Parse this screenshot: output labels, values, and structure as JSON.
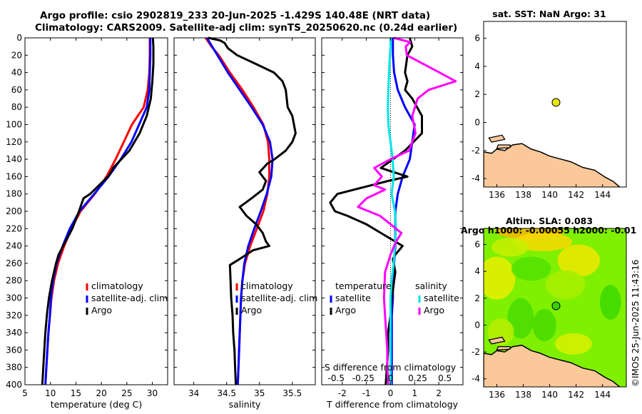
{
  "header": {
    "title_line1": "Argo profile: csio 2902819_233 20-Jun-2025 -1.429S 140.48E (NRT data)",
    "title_line2": "Climatology: CARS2009. Satellite-adj clim: synTS_20250620.nc (0.24d earlier)"
  },
  "stamp": "©IMOS 25-Jun-2025 11:43:16",
  "colors": {
    "climatology": "#ff0000",
    "satellite": "#0000ff",
    "argo": "#000000",
    "sat_diff_salinity": "#00e5e5",
    "argo_diff_salinity": "#ff00ff",
    "land": "#fbc89a",
    "sla_base": "#7ff000"
  },
  "chart_data": [
    {
      "id": "temperature",
      "type": "line",
      "xlabel": "temperature (deg C)",
      "ylabel": "",
      "xlim": [
        5,
        33
      ],
      "ylim": [
        400,
        0
      ],
      "xticks": [
        "5",
        "10",
        "15",
        "20",
        "25",
        "30"
      ],
      "yticks": [
        "0",
        "20",
        "40",
        "60",
        "80",
        "100",
        "120",
        "140",
        "160",
        "180",
        "200",
        "220",
        "240",
        "260",
        "280",
        "300",
        "320",
        "340",
        "360",
        "380",
        "400"
      ],
      "legend": [
        "climatology",
        "satellite-adj. clim",
        "Argo"
      ],
      "series": [
        {
          "name": "climatology",
          "color": "#ff0000",
          "depth": [
            0,
            20,
            40,
            60,
            80,
            100,
            120,
            140,
            160,
            180,
            200,
            220,
            240,
            260,
            280,
            300,
            320,
            340,
            360,
            380,
            400
          ],
          "values": [
            29.5,
            29.5,
            29.4,
            29.1,
            28.3,
            26.0,
            24.4,
            22.8,
            21.0,
            18.7,
            15.9,
            14.1,
            12.7,
            11.5,
            10.7,
            10.2,
            9.9,
            9.6,
            9.4,
            9.2,
            9.0
          ]
        },
        {
          "name": "satellite",
          "color": "#0000ff",
          "depth": [
            0,
            20,
            40,
            60,
            80,
            100,
            120,
            140,
            160,
            180,
            200,
            220,
            240,
            260,
            280,
            300,
            320,
            340,
            360,
            380,
            400
          ],
          "values": [
            29.6,
            29.6,
            29.5,
            29.4,
            28.9,
            27.4,
            25.9,
            23.8,
            21.4,
            18.6,
            15.7,
            13.8,
            12.4,
            11.2,
            10.5,
            10.1,
            9.9,
            9.6,
            9.4,
            9.2,
            9.0
          ]
        },
        {
          "name": "Argo",
          "color": "#000000",
          "depth": [
            0,
            10,
            30,
            50,
            70,
            90,
            110,
            130,
            150,
            155,
            160,
            165,
            180,
            185,
            200,
            220,
            240,
            250,
            260,
            280,
            300,
            320,
            340,
            360,
            380,
            400
          ],
          "values": [
            30.1,
            30.2,
            30.2,
            30.0,
            29.7,
            28.9,
            27.5,
            25.5,
            22.3,
            21.9,
            21.3,
            20.4,
            17.8,
            16.5,
            15.6,
            14.3,
            12.5,
            11.6,
            11.1,
            10.3,
            9.7,
            9.3,
            9.0,
            8.8,
            8.6,
            8.4
          ]
        }
      ]
    },
    {
      "id": "salinity",
      "type": "line",
      "xlabel": "salinity",
      "ylabel": "",
      "xlim": [
        33.7,
        35.85
      ],
      "ylim": [
        400,
        0
      ],
      "xticks": [
        "34",
        "34.5",
        "35",
        "35.5"
      ],
      "legend": [
        "climatology",
        "satellite-adj. clim",
        "Argo"
      ],
      "series": [
        {
          "name": "climatology",
          "color": "#ff0000",
          "depth": [
            0,
            10,
            20,
            40,
            60,
            80,
            100,
            120,
            140,
            160,
            180,
            200,
            220,
            240,
            260,
            280,
            300,
            320,
            340,
            360,
            380,
            400
          ],
          "values": [
            34.18,
            34.27,
            34.38,
            34.55,
            34.74,
            34.91,
            35.06,
            35.13,
            35.15,
            35.15,
            35.12,
            35.06,
            34.96,
            34.86,
            34.78,
            34.74,
            34.72,
            34.71,
            34.7,
            34.69,
            34.68,
            34.67
          ]
        },
        {
          "name": "satellite",
          "color": "#0000ff",
          "depth": [
            0,
            10,
            20,
            40,
            60,
            80,
            100,
            120,
            140,
            160,
            180,
            200,
            220,
            240,
            260,
            280,
            300,
            320,
            340,
            360,
            380,
            400
          ],
          "values": [
            34.2,
            34.28,
            34.36,
            34.52,
            34.7,
            34.88,
            35.05,
            35.16,
            35.2,
            35.18,
            35.11,
            35.02,
            34.92,
            34.83,
            34.77,
            34.74,
            34.72,
            34.71,
            34.7,
            34.69,
            34.68,
            34.67
          ]
        },
        {
          "name": "Argo",
          "color": "#000000",
          "depth": [
            0,
            3,
            6,
            12,
            20,
            30,
            40,
            50,
            60,
            80,
            90,
            110,
            120,
            130,
            140,
            145,
            155,
            165,
            175,
            185,
            195,
            205,
            215,
            225,
            235,
            240,
            245,
            255,
            262,
            280,
            300,
            320,
            340,
            360,
            380,
            400
          ],
          "values": [
            34.22,
            34.4,
            34.47,
            34.52,
            34.66,
            34.94,
            35.22,
            35.35,
            35.4,
            35.43,
            35.5,
            35.55,
            35.5,
            35.4,
            35.23,
            35.12,
            35.0,
            35.1,
            35.05,
            34.88,
            34.7,
            34.8,
            34.95,
            35.05,
            35.1,
            35.15,
            34.9,
            34.7,
            34.55,
            34.56,
            34.57,
            34.59,
            34.6,
            34.62,
            34.63,
            34.64
          ]
        }
      ]
    },
    {
      "id": "difference",
      "type": "line",
      "xlabel": "T difference from climatology",
      "xlabel_top": "S difference from climatology",
      "xlim": [
        -2.85,
        3.0
      ],
      "ylim": [
        400,
        0
      ],
      "xticks": [
        "-2",
        "-1",
        "0",
        "1",
        "2"
      ],
      "xticks_top": [
        "-0.5",
        "-0.25",
        "0",
        "0.25",
        "0.5"
      ],
      "legend_temperature_title": "temperature",
      "legend_salinity_title": "salinity",
      "legend_temperature": [
        "satellite",
        "Argo"
      ],
      "legend_salinity": [
        "satellite",
        "Argo"
      ],
      "series": [
        {
          "name": "T satellite",
          "color": "#0000ff",
          "depth": [
            0,
            20,
            40,
            60,
            80,
            100,
            120,
            140,
            160,
            180,
            200,
            220,
            240,
            260,
            280,
            300,
            320,
            340,
            360,
            380,
            400
          ],
          "values": [
            0.1,
            0.1,
            0.15,
            0.3,
            0.6,
            1.0,
            0.9,
            0.8,
            0.5,
            0.3,
            0.2,
            0.2,
            0.2,
            0.15,
            0.1,
            0.1,
            0.05,
            0.05,
            0.05,
            0.05,
            0.05
          ]
        },
        {
          "name": "T Argo",
          "color": "#000000",
          "depth": [
            0,
            10,
            20,
            40,
            50,
            60,
            70,
            90,
            110,
            130,
            150,
            160,
            165,
            180,
            190,
            200,
            205,
            215,
            225,
            240,
            250,
            255,
            270,
            300,
            320,
            340,
            360,
            380,
            400
          ],
          "values": [
            0.8,
            0.9,
            0.7,
            0.6,
            0.7,
            0.6,
            0.9,
            1.3,
            1.3,
            0.6,
            -0.4,
            0.7,
            -0.1,
            -2.2,
            -2.5,
            -2.3,
            -1.8,
            -1.0,
            -0.4,
            0.5,
            0.2,
            0.1,
            0.2,
            0.05,
            0.0,
            -0.1,
            -0.1,
            -0.15,
            -0.2
          ]
        },
        {
          "name": "S satellite",
          "color": "#00e5e5",
          "depth": [
            0,
            10,
            30,
            60,
            80,
            100,
            120,
            140,
            160,
            180,
            200,
            220,
            240,
            260,
            280,
            300,
            320,
            340,
            360,
            380,
            400
          ],
          "values": [
            0.0,
            0.0,
            -0.01,
            -0.02,
            -0.025,
            -0.02,
            0.0,
            0.02,
            0.03,
            0.01,
            0.04,
            0.05,
            0.04,
            0.03,
            0.01,
            0.0,
            0.0,
            0.0,
            0.0,
            0.0,
            0.0
          ]
        },
        {
          "name": "S Argo",
          "color": "#ff00ff",
          "depth": [
            0,
            5,
            10,
            20,
            40,
            50,
            60,
            70,
            90,
            110,
            130,
            140,
            150,
            160,
            170,
            175,
            185,
            195,
            200,
            205,
            215,
            225,
            235,
            250,
            270,
            300,
            320,
            340,
            360,
            380,
            400
          ],
          "values": [
            0.03,
            0.18,
            0.14,
            0.15,
            0.45,
            0.6,
            0.35,
            0.25,
            0.2,
            0.23,
            0.17,
            0.0,
            -0.15,
            -0.08,
            -0.15,
            -0.05,
            -0.22,
            -0.3,
            -0.2,
            -0.1,
            0.0,
            0.1,
            0.05,
            0.0,
            -0.05,
            -0.06,
            -0.05,
            -0.04,
            -0.03,
            -0.03,
            -0.02
          ]
        }
      ]
    },
    {
      "id": "sst_map",
      "type": "map",
      "title": "sat. SST: NaN Argo: 31",
      "xlim": [
        135,
        145.8
      ],
      "ylim": [
        -4.6,
        7.2
      ],
      "xticks": [
        "136",
        "138",
        "140",
        "142",
        "144"
      ],
      "yticks": [
        "6",
        "4",
        "2",
        "0",
        "-2",
        "-4"
      ],
      "argo_lon": 140.48,
      "argo_lat": 1.43
    },
    {
      "id": "sla_map",
      "type": "map",
      "title": "Altim. SLA: 0.083",
      "subtitle": "Argo h1000: -0.00055 h2000: -0.01",
      "xlim": [
        135,
        145.8
      ],
      "ylim": [
        -4.6,
        7.2
      ],
      "xticks": [
        "136",
        "138",
        "140",
        "142",
        "144"
      ],
      "yticks": [
        "6",
        "4",
        "2",
        "0",
        "-2",
        "-4"
      ],
      "argo_lon": 140.48,
      "argo_lat": 1.43
    }
  ]
}
